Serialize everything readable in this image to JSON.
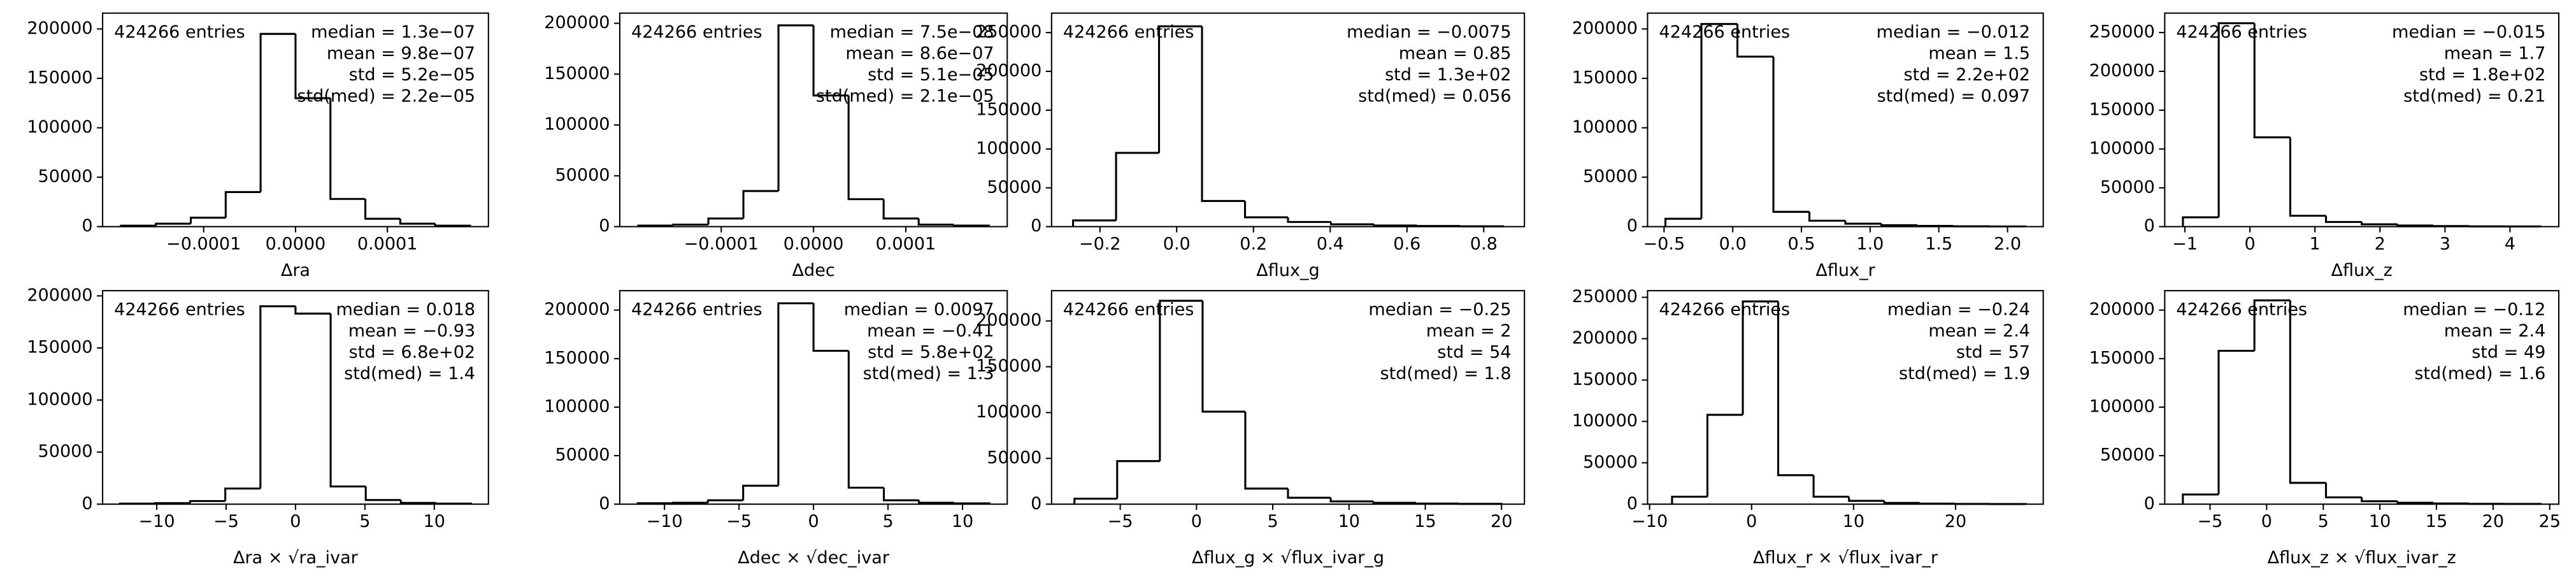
{
  "chart_data": [
    {
      "type": "histogram",
      "xlabel": "Δra",
      "entries": "424266 entries",
      "stats": [
        "median = 1.3e−07",
        "mean = 9.8e−07",
        "std = 5.2e−05",
        "std(med) = 2.2e−05"
      ],
      "bins": [
        -0.00019,
        -0.000152,
        -0.000114,
        -7.6e-05,
        -3.8e-05,
        0,
        3.8e-05,
        7.6e-05,
        0.000114,
        0.000152,
        0.00019
      ],
      "counts": [
        1000,
        3000,
        9000,
        35000,
        195000,
        130000,
        28000,
        8000,
        3000,
        1000
      ],
      "color": "#000000",
      "xlim": [
        -0.00021,
        0.00021
      ],
      "ylim": [
        0,
        216000
      ],
      "xticks": [
        {
          "value": -0.0001,
          "label": "−0.0001"
        },
        {
          "value": 0,
          "label": "0.0000"
        },
        0.0001
      ],
      "yticks": [
        0,
        50000,
        100000,
        150000,
        200000
      ]
    },
    {
      "type": "histogram",
      "xlabel": "Δdec",
      "entries": "424266 entries",
      "stats": [
        "median = 7.5e−08",
        "mean = 8.6e−07",
        "std = 5.1e−05",
        "std(med) = 2.1e−05"
      ],
      "bins": [
        -0.00019,
        -0.000152,
        -0.000114,
        -7.6e-05,
        -3.8e-05,
        0,
        3.8e-05,
        7.6e-05,
        0.000114,
        0.000152,
        0.00019
      ],
      "counts": [
        1000,
        2000,
        8000,
        35000,
        198000,
        129000,
        27000,
        8000,
        2000,
        1000
      ],
      "color": "#000000",
      "xlim": [
        -0.00021,
        0.00021
      ],
      "ylim": [
        0,
        210000
      ],
      "xticks": [
        {
          "value": -0.0001,
          "label": "−0.0001"
        },
        {
          "value": 0,
          "label": "0.0000"
        },
        0.0001
      ],
      "yticks": [
        0,
        50000,
        100000,
        150000,
        200000
      ]
    },
    {
      "type": "histogram",
      "xlabel": "Δflux_g",
      "entries": "424266 entries",
      "stats": [
        "median = −0.0075",
        "mean = 0.85",
        "std = 1.3e+02",
        "std(med) = 0.056"
      ],
      "bins": [
        -0.27,
        -0.158,
        -0.046,
        0.066,
        0.178,
        0.29,
        0.402,
        0.514,
        0.626,
        0.738,
        0.85
      ],
      "counts": [
        8000,
        95000,
        258000,
        33000,
        12000,
        6000,
        3000,
        1500,
        800,
        400
      ],
      "color": "#000000",
      "xlim": [
        -0.326,
        0.906
      ],
      "ylim": [
        0,
        275000
      ],
      "xticks": [
        {
          "value": -0.2,
          "label": "−0.2"
        },
        {
          "value": 0,
          "label": "0.0"
        },
        0.2,
        0.4,
        0.6,
        0.8
      ],
      "yticks": [
        0,
        50000,
        100000,
        150000,
        200000,
        250000
      ]
    },
    {
      "type": "histogram",
      "xlabel": "Δflux_r",
      "entries": "424266 entries",
      "stats": [
        "median = −0.012",
        "mean = 1.5",
        "std = 2.2e+02",
        "std(med) = 0.097"
      ],
      "bins": [
        -0.49,
        -0.228,
        0.034,
        0.296,
        0.558,
        0.82,
        1.082,
        1.344,
        1.606,
        1.868,
        2.13
      ],
      "counts": [
        8000,
        205000,
        172000,
        15000,
        6000,
        3000,
        1500,
        700,
        300,
        200
      ],
      "color": "#000000",
      "xlim": [
        -0.62,
        2.26
      ],
      "ylim": [
        0,
        216000
      ],
      "xticks": [
        {
          "value": -0.5,
          "label": "−0.5"
        },
        {
          "value": 0,
          "label": "0.0"
        },
        0.5,
        {
          "value": 1,
          "label": "1.0"
        },
        1.5,
        {
          "value": 2,
          "label": "2.0"
        }
      ],
      "yticks": [
        0,
        50000,
        100000,
        150000,
        200000
      ]
    },
    {
      "type": "histogram",
      "xlabel": "Δflux_z",
      "entries": "424266 entries",
      "stats": [
        "median = −0.015",
        "mean = 1.7",
        "std = 1.8e+02",
        "std(med) = 0.21"
      ],
      "bins": [
        -1.03,
        -0.48,
        0.07,
        0.62,
        1.17,
        1.72,
        2.27,
        2.82,
        3.37,
        3.92,
        4.47
      ],
      "counts": [
        12000,
        262000,
        115000,
        14000,
        6000,
        3000,
        1500,
        700,
        300,
        200
      ],
      "color": "#000000",
      "xlim": [
        -1.31,
        4.75
      ],
      "ylim": [
        0,
        275000
      ],
      "xticks": [
        {
          "value": -1,
          "label": "−1"
        },
        0,
        1,
        2,
        3,
        4
      ],
      "yticks": [
        0,
        50000,
        100000,
        150000,
        200000,
        250000
      ]
    },
    {
      "type": "histogram",
      "xlabel": "Δra × √ra_ivar",
      "entries": "424266 entries",
      "stats": [
        "median = 0.018",
        "mean = −0.93",
        "std = 6.8e+02",
        "std(med) = 1.4"
      ],
      "bins": [
        -12.65,
        -10.12,
        -7.59,
        -5.06,
        -2.53,
        0,
        2.53,
        5.06,
        7.59,
        10.12,
        12.65
      ],
      "counts": [
        500,
        1000,
        3000,
        15000,
        190000,
        183000,
        17000,
        4000,
        1200,
        500
      ],
      "color": "#000000",
      "xlim": [
        -13.9,
        13.9
      ],
      "ylim": [
        0,
        205000
      ],
      "xticks": [
        {
          "value": -10,
          "label": "−10"
        },
        {
          "value": -5,
          "label": "−5"
        },
        0,
        5,
        10
      ],
      "yticks": [
        0,
        50000,
        100000,
        150000,
        200000
      ]
    },
    {
      "type": "histogram",
      "xlabel": "Δdec × √dec_ivar",
      "entries": "424266 entries",
      "stats": [
        "median = 0.0097",
        "mean = −0.41",
        "std = 5.8e+02",
        "std(med) = 1.3"
      ],
      "bins": [
        -11.8,
        -9.44,
        -7.08,
        -4.72,
        -2.36,
        0,
        2.36,
        4.72,
        7.08,
        9.44,
        11.8
      ],
      "counts": [
        1000,
        1500,
        4000,
        19000,
        207000,
        158000,
        17000,
        4000,
        1500,
        800
      ],
      "color": "#000000",
      "xlim": [
        -13,
        13
      ],
      "ylim": [
        0,
        220000
      ],
      "xticks": [
        {
          "value": -10,
          "label": "−10"
        },
        {
          "value": -5,
          "label": "−5"
        },
        0,
        5,
        10
      ],
      "yticks": [
        0,
        50000,
        100000,
        150000,
        200000
      ]
    },
    {
      "type": "histogram",
      "xlabel": "Δflux_g × √flux_ivar_g",
      "entries": "424266 entries",
      "stats": [
        "median = −0.25",
        "mean = 2",
        "std = 54",
        "std(med) = 1.8"
      ],
      "bins": [
        -8,
        -5.2,
        -2.4,
        0.4,
        3.2,
        6,
        8.8,
        11.6,
        14.4,
        17.2,
        20
      ],
      "counts": [
        6000,
        47000,
        222000,
        101000,
        17000,
        7000,
        3000,
        1500,
        700,
        300
      ],
      "color": "#000000",
      "xlim": [
        -9.5,
        21.5
      ],
      "ylim": [
        0,
        233000
      ],
      "xticks": [
        {
          "value": -5,
          "label": "−5"
        },
        0,
        5,
        10,
        15,
        20
      ],
      "yticks": [
        0,
        50000,
        100000,
        150000,
        200000
      ]
    },
    {
      "type": "histogram",
      "xlabel": "Δflux_r × √flux_ivar_r",
      "entries": "424266 entries",
      "stats": [
        "median = −0.24",
        "mean = 2.4",
        "std = 57",
        "std(med) = 1.9"
      ],
      "bins": [
        -7.8,
        -4.33,
        -0.86,
        2.61,
        6.08,
        9.55,
        13.02,
        16.49,
        19.96,
        23.43,
        26.9
      ],
      "counts": [
        9000,
        108000,
        245000,
        35000,
        9000,
        4000,
        1500,
        700,
        300,
        200
      ],
      "color": "#000000",
      "xlim": [
        -10.2,
        28.6
      ],
      "ylim": [
        0,
        258000
      ],
      "xticks": [
        {
          "value": -10,
          "label": "−10"
        },
        0,
        10,
        20
      ],
      "yticks": [
        0,
        50000,
        100000,
        150000,
        200000,
        250000
      ]
    },
    {
      "type": "histogram",
      "xlabel": "Δflux_z × √flux_ivar_z",
      "entries": "424266 entries",
      "stats": [
        "median = −0.12",
        "mean = 2.4",
        "std = 49",
        "std(med) = 1.6"
      ],
      "bins": [
        -7.4,
        -4.24,
        -1.08,
        2.08,
        5.24,
        8.4,
        11.56,
        14.72,
        17.88,
        21.04,
        24.2
      ],
      "counts": [
        10000,
        158000,
        210000,
        22000,
        7000,
        3000,
        1500,
        700,
        300,
        200
      ],
      "color": "#000000",
      "xlim": [
        -9,
        25.8
      ],
      "ylim": [
        0,
        220000
      ],
      "xticks": [
        {
          "value": -5,
          "label": "−5"
        },
        0,
        5,
        10,
        15,
        20,
        25
      ],
      "yticks": [
        0,
        50000,
        100000,
        150000,
        200000
      ]
    }
  ]
}
